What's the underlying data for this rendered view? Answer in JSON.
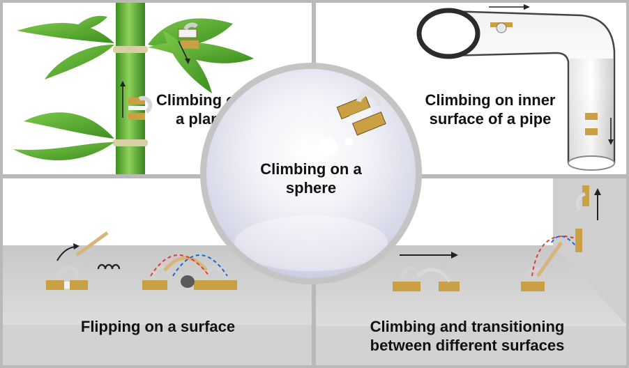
{
  "figure": {
    "panels": {
      "plant": {
        "caption_lines": [
          "Climbing on",
          "a plant"
        ]
      },
      "pipe": {
        "caption_lines": [
          "Climbing on inner",
          "surface of a pipe"
        ]
      },
      "sphere": {
        "caption_lines": [
          "Climbing on a",
          "sphere"
        ]
      },
      "flip": {
        "caption_lines": [
          "Flipping on a surface"
        ]
      },
      "transit": {
        "caption_lines": [
          "Climbing and transitioning",
          "between different surfaces"
        ]
      }
    },
    "colors": {
      "frame": "#b9b9b9",
      "leaf": "#58b02e",
      "stem": "#6fbb3c",
      "floor": "#d4d4d4",
      "electrode": "#c9a043",
      "arrow_red": "#e53935",
      "arrow_blue": "#1e63d6"
    }
  }
}
